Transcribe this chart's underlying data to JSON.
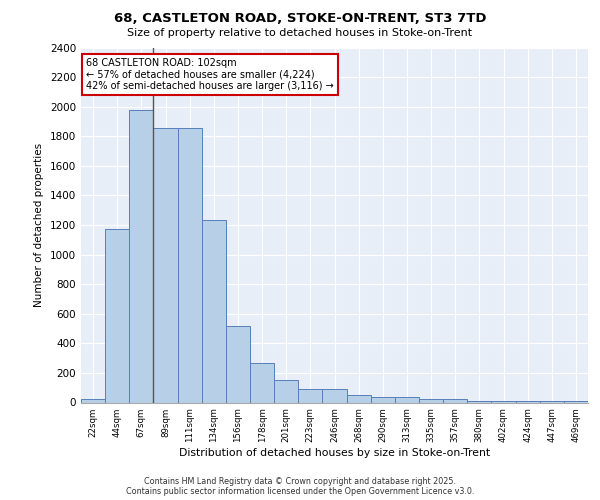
{
  "title_line1": "68, CASTLETON ROAD, STOKE-ON-TRENT, ST3 7TD",
  "title_line2": "Size of property relative to detached houses in Stoke-on-Trent",
  "xlabel": "Distribution of detached houses by size in Stoke-on-Trent",
  "ylabel": "Number of detached properties",
  "categories": [
    "22sqm",
    "44sqm",
    "67sqm",
    "89sqm",
    "111sqm",
    "134sqm",
    "156sqm",
    "178sqm",
    "201sqm",
    "223sqm",
    "246sqm",
    "268sqm",
    "290sqm",
    "313sqm",
    "335sqm",
    "357sqm",
    "380sqm",
    "402sqm",
    "424sqm",
    "447sqm",
    "469sqm"
  ],
  "values": [
    25,
    1175,
    1975,
    1855,
    1855,
    1235,
    515,
    270,
    155,
    90,
    90,
    50,
    40,
    40,
    22,
    22,
    10,
    10,
    8,
    8,
    8
  ],
  "bar_color": "#b8cfe8",
  "bar_edge_color": "#5580b8",
  "background_color": "#e8eef8",
  "grid_color": "#ffffff",
  "ylim": [
    0,
    2400
  ],
  "yticks": [
    0,
    200,
    400,
    600,
    800,
    1000,
    1200,
    1400,
    1600,
    1800,
    2000,
    2200,
    2400
  ],
  "annotation_title": "68 CASTLETON ROAD: 102sqm",
  "annotation_line2": "← 57% of detached houses are smaller (4,224)",
  "annotation_line3": "42% of semi-detached houses are larger (3,116) →",
  "annotation_box_color": "#ffffff",
  "annotation_box_edge": "#cc0000",
  "vline_x": 3,
  "footer1": "Contains HM Land Registry data © Crown copyright and database right 2025.",
  "footer2": "Contains public sector information licensed under the Open Government Licence v3.0."
}
